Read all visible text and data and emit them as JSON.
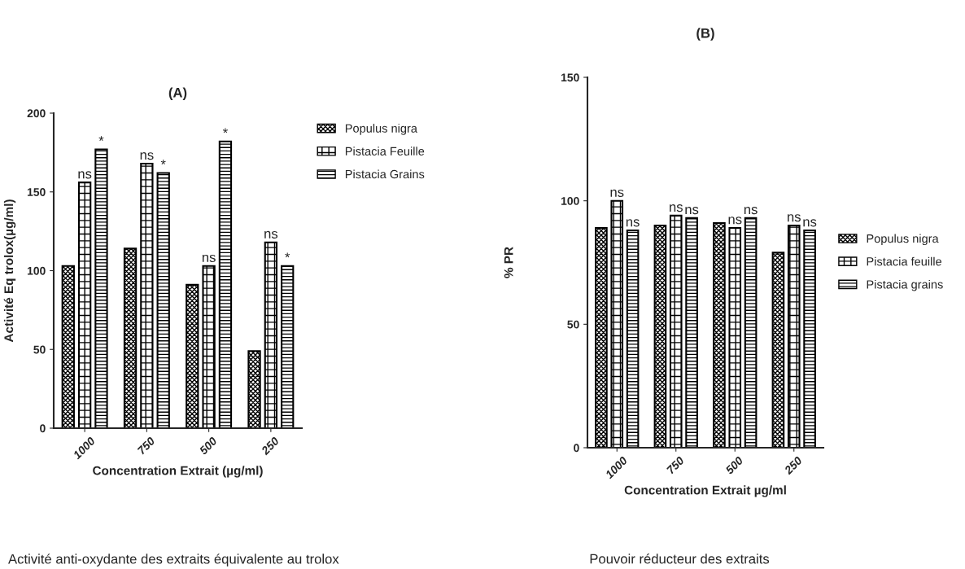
{
  "chart_data": [
    {
      "type": "bar",
      "title": "(A)",
      "xlabel": "Concentration Extrait (µg/ml)",
      "ylabel": "Activité Eq trolox(µg/ml)",
      "categories": [
        "1000",
        "750",
        "500",
        "250"
      ],
      "series": [
        {
          "name": "Populus nigra",
          "color": "#000000",
          "values": [
            103,
            114,
            91,
            49
          ]
        },
        {
          "name": "Pistacia Feuille",
          "color": "#000000",
          "values": [
            156,
            168,
            103,
            118
          ]
        },
        {
          "name": "Pistacia Grains",
          "color": "#000000",
          "values": [
            177,
            162,
            182,
            103
          ]
        }
      ],
      "ylim": [
        0,
        200
      ],
      "yticks": [
        0,
        50,
        100,
        150,
        200
      ],
      "grid": false,
      "legend": "top right",
      "annotations": [
        {
          "text": "ns",
          "x": "1000",
          "y": 156
        },
        "*",
        {
          "text": "ns",
          "x": "750",
          "y": 168
        },
        "*",
        {
          "text": "ns",
          "x": "500",
          "y": 103
        },
        "*",
        {
          "text": "ns",
          "x": "250",
          "y": 118
        },
        "*",
        "Activité anti-oxydante des extraits équivalente au trolox"
      ]
    },
    {
      "type": "bar",
      "title": "(B)",
      "xlabel": "Concentration Extrait µg/ml",
      "ylabel": "% PR",
      "categories": [
        "1000",
        "750",
        "500",
        "250"
      ],
      "series": [
        {
          "name": "Populus nigra",
          "color": "#000000",
          "values": [
            89,
            90,
            91,
            79
          ]
        },
        {
          "name": "Pistacia feuille",
          "color": "#000000",
          "values": [
            100,
            94,
            89,
            90
          ]
        },
        {
          "name": "Pistacia grains",
          "color": "#000000",
          "values": [
            88,
            93,
            93,
            88
          ]
        }
      ],
      "ylim": [
        0,
        150
      ],
      "yticks": [
        0,
        50,
        100,
        150
      ],
      "grid": false,
      "legend": "right",
      "annotations": [
        {
          "text": "ns",
          "x": "1000",
          "y": 100
        },
        "ns",
        {
          "text": "ns",
          "x": "750",
          "y": 94
        },
        {
          "text": "ns",
          "x": "750",
          "y": 93
        },
        {
          "text": "ns",
          "x": "500",
          "y": 89
        },
        "ns",
        {
          "text": "ns",
          "x": "250",
          "y": 90
        },
        "ns",
        "Pouvoir réducteur des extraits"
      ]
    }
  ]
}
